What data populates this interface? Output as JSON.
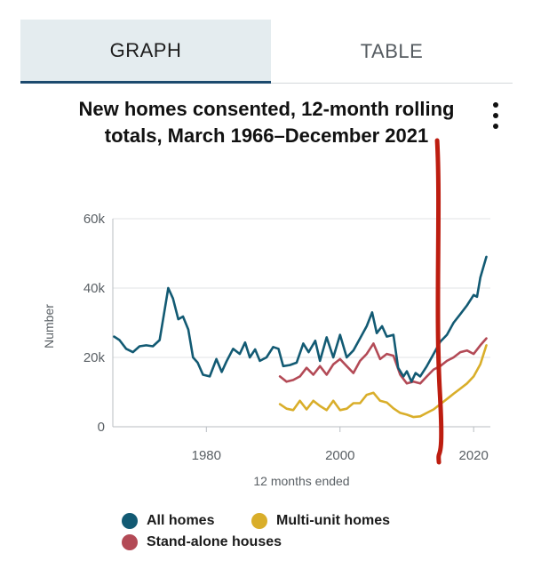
{
  "tabs": [
    {
      "label": "GRAPH",
      "active": true
    },
    {
      "label": "TABLE",
      "active": false
    }
  ],
  "menu_icon": "kebab-menu-icon",
  "chart_data": {
    "type": "line",
    "title": "New homes consented, 12-month rolling totals, March 1966–December 2021",
    "xlabel": "12 months ended",
    "ylabel": "Number",
    "xlim": [
      1966,
      2022.5
    ],
    "ylim": [
      0,
      60000
    ],
    "x_ticks": [
      1980,
      2000,
      2020
    ],
    "y_ticks": [
      {
        "value": 0,
        "label": "0"
      },
      {
        "value": 20000,
        "label": "20k"
      },
      {
        "value": 40000,
        "label": "40k"
      },
      {
        "value": 60000,
        "label": "60k"
      }
    ],
    "grid": "horizontal",
    "legend_position": "bottom",
    "series": [
      {
        "name": "All homes",
        "color": "#125a73",
        "points": [
          [
            1966.2,
            26000
          ],
          [
            1967,
            25000
          ],
          [
            1968,
            22500
          ],
          [
            1969,
            21500
          ],
          [
            1970,
            23200
          ],
          [
            1971,
            23500
          ],
          [
            1972,
            23200
          ],
          [
            1973,
            25000
          ],
          [
            1973.7,
            33000
          ],
          [
            1974.3,
            40000
          ],
          [
            1975,
            37000
          ],
          [
            1975.8,
            31000
          ],
          [
            1976.5,
            31800
          ],
          [
            1977.3,
            28000
          ],
          [
            1978,
            20000
          ],
          [
            1978.7,
            18500
          ],
          [
            1979.5,
            15000
          ],
          [
            1980.5,
            14500
          ],
          [
            1981.5,
            19500
          ],
          [
            1982.3,
            15800
          ],
          [
            1983,
            18800
          ],
          [
            1984,
            22500
          ],
          [
            1985,
            21000
          ],
          [
            1985.8,
            24300
          ],
          [
            1986.5,
            20000
          ],
          [
            1987.3,
            22300
          ],
          [
            1988,
            19000
          ],
          [
            1989,
            20000
          ],
          [
            1990,
            23000
          ],
          [
            1990.8,
            22500
          ],
          [
            1991.5,
            17500
          ],
          [
            1992.5,
            17800
          ],
          [
            1993.5,
            18500
          ],
          [
            1994.5,
            24000
          ],
          [
            1995.3,
            21500
          ],
          [
            1996.3,
            24800
          ],
          [
            1997,
            19000
          ],
          [
            1998,
            25800
          ],
          [
            1999,
            20000
          ],
          [
            2000,
            26500
          ],
          [
            2001,
            20000
          ],
          [
            2002,
            22000
          ],
          [
            2003,
            25500
          ],
          [
            2004,
            29000
          ],
          [
            2004.8,
            33000
          ],
          [
            2005.5,
            27000
          ],
          [
            2006.3,
            29000
          ],
          [
            2007,
            26000
          ],
          [
            2008,
            26500
          ],
          [
            2008.7,
            17000
          ],
          [
            2009.5,
            14500
          ],
          [
            2010,
            16000
          ],
          [
            2010.7,
            13000
          ],
          [
            2011.3,
            15500
          ],
          [
            2012,
            14500
          ],
          [
            2013,
            17500
          ],
          [
            2014,
            21000
          ],
          [
            2015,
            24500
          ],
          [
            2016,
            26500
          ],
          [
            2017,
            30000
          ],
          [
            2018,
            32500
          ],
          [
            2019,
            35000
          ],
          [
            2020,
            38000
          ],
          [
            2020.5,
            37500
          ],
          [
            2021,
            43000
          ],
          [
            2021.9,
            49000
          ]
        ]
      },
      {
        "name": "Multi-unit homes",
        "color": "#d9ae2a",
        "points": [
          [
            1991,
            6500
          ],
          [
            1992,
            5200
          ],
          [
            1993,
            4800
          ],
          [
            1994,
            7500
          ],
          [
            1995,
            5000
          ],
          [
            1996,
            7500
          ],
          [
            1997,
            6000
          ],
          [
            1998,
            4800
          ],
          [
            1999,
            7500
          ],
          [
            2000,
            4800
          ],
          [
            2001,
            5200
          ],
          [
            2002,
            6800
          ],
          [
            2003,
            6800
          ],
          [
            2004,
            9200
          ],
          [
            2005,
            9800
          ],
          [
            2006,
            7500
          ],
          [
            2007,
            7000
          ],
          [
            2008,
            5300
          ],
          [
            2009,
            4000
          ],
          [
            2010,
            3500
          ],
          [
            2011,
            2800
          ],
          [
            2012,
            3000
          ],
          [
            2013,
            4000
          ],
          [
            2014,
            5000
          ],
          [
            2015,
            6500
          ],
          [
            2016,
            8000
          ],
          [
            2017,
            9500
          ],
          [
            2018,
            11000
          ],
          [
            2019,
            12500
          ],
          [
            2020,
            14500
          ],
          [
            2021,
            18000
          ],
          [
            2021.9,
            23500
          ]
        ]
      },
      {
        "name": "Stand-alone houses",
        "color": "#b34a56",
        "points": [
          [
            1991,
            14500
          ],
          [
            1992,
            13000
          ],
          [
            1993,
            13500
          ],
          [
            1994,
            14500
          ],
          [
            1995,
            17000
          ],
          [
            1996,
            15000
          ],
          [
            1997,
            17500
          ],
          [
            1998,
            15000
          ],
          [
            1999,
            18000
          ],
          [
            2000,
            19500
          ],
          [
            2001,
            17500
          ],
          [
            2002,
            15500
          ],
          [
            2003,
            19000
          ],
          [
            2004,
            21000
          ],
          [
            2005,
            24000
          ],
          [
            2006,
            19500
          ],
          [
            2007,
            21000
          ],
          [
            2008,
            20500
          ],
          [
            2009,
            15000
          ],
          [
            2010,
            12500
          ],
          [
            2011,
            13000
          ],
          [
            2012,
            12500
          ],
          [
            2013,
            14500
          ],
          [
            2014,
            16500
          ],
          [
            2015,
            17500
          ],
          [
            2016,
            19000
          ],
          [
            2017,
            20000
          ],
          [
            2018,
            21500
          ],
          [
            2019,
            22000
          ],
          [
            2020,
            21000
          ],
          [
            2021,
            23500
          ],
          [
            2021.9,
            25500
          ]
        ]
      }
    ],
    "annotation": {
      "type": "vertical-line",
      "x": 2014.8,
      "color": "#bd1d10"
    }
  }
}
